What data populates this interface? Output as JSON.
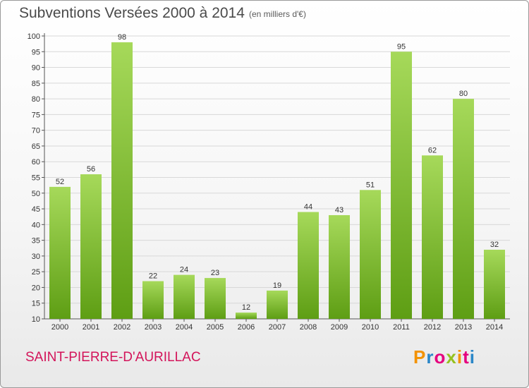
{
  "title": "Subventions Versées 2000 à 2014",
  "subtitle": "(en milliers d'€)",
  "commune": "SAINT-PIERRE-D'AURILLAC",
  "logo": {
    "text": "Proxiti",
    "colors": [
      "#f39200",
      "#2b87c8",
      "#e5007e",
      "#95c11f",
      "#f39200",
      "#e5007e",
      "#2b87c8"
    ]
  },
  "chart_data": {
    "type": "bar",
    "categories": [
      "2000",
      "2001",
      "2002",
      "2003",
      "2004",
      "2005",
      "2006",
      "2007",
      "2008",
      "2009",
      "2010",
      "2011",
      "2012",
      "2013",
      "2014"
    ],
    "values": [
      52,
      56,
      98,
      22,
      24,
      23,
      12,
      19,
      44,
      43,
      51,
      95,
      62,
      80,
      32
    ],
    "ylim": [
      10,
      100
    ],
    "yticks": [
      10,
      15,
      20,
      25,
      30,
      35,
      40,
      45,
      50,
      55,
      60,
      65,
      70,
      75,
      80,
      85,
      90,
      95,
      100
    ],
    "grid": true,
    "bar_color": "#7cc02c",
    "bar_color_light": "#a6d95a"
  }
}
